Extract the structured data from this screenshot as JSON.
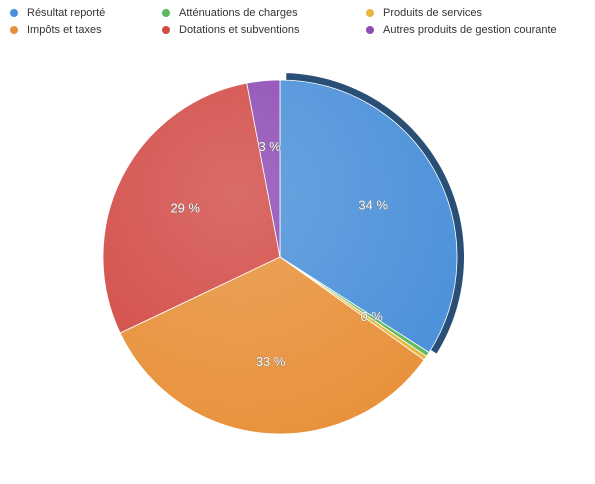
{
  "chart_data": {
    "type": "pie",
    "title": "",
    "legend_position": "top",
    "slices": [
      {
        "label": "Résultat reporté",
        "value": 34,
        "value_label": "34 %",
        "color": "#4a90d9"
      },
      {
        "label": "Atténuations de charges",
        "value": 0.4,
        "value_label": "0 %",
        "color": "#5cb85c"
      },
      {
        "label": "Produits de services",
        "value": 0.4,
        "value_label": "",
        "color": "#e8b83c"
      },
      {
        "label": "Impôts et taxes",
        "value": 33,
        "value_label": "33 %",
        "color": "#e8913a"
      },
      {
        "label": "Dotations et subventions",
        "value": 29,
        "value_label": "29 %",
        "color": "#d24b46"
      },
      {
        "label": "Autres produits de gestion courante",
        "value": 3,
        "value_label": "3 %",
        "color": "#8d4bb3"
      }
    ]
  }
}
